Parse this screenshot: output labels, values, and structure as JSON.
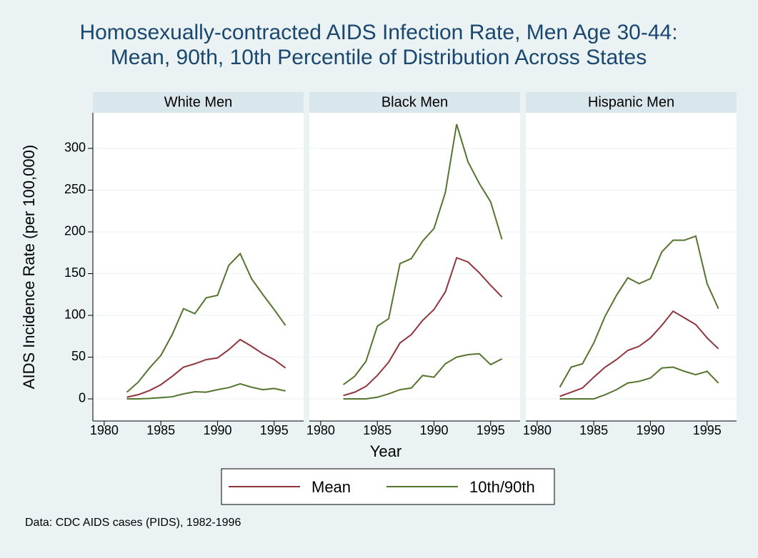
{
  "title": [
    "Homosexually-contracted AIDS Infection Rate, Men Age 30-44:",
    "Mean, 90th, 10th Percentile of Distribution Across States"
  ],
  "y_label": "AIDS Incidence Rate (per 100,000)",
  "x_label": "Year",
  "note": "Data: CDC AIDS cases (PIDS), 1982-1996",
  "chart_data": [
    {
      "type": "line",
      "title": "White Men",
      "x": [
        1982,
        1983,
        1984,
        1985,
        1986,
        1987,
        1988,
        1989,
        1990,
        1991,
        1992,
        1993,
        1994,
        1995,
        1996
      ],
      "series": [
        {
          "name": "Mean",
          "color": "#90353b",
          "values": [
            2,
            5,
            10,
            17,
            27,
            38,
            42,
            47,
            49,
            59,
            71,
            63,
            54,
            47,
            37
          ]
        },
        {
          "name": "10th/90th",
          "color": "#55752f",
          "values": [
            8,
            20,
            37,
            52,
            77,
            108,
            102,
            121,
            124,
            160,
            174,
            144,
            125,
            107,
            88
          ]
        },
        {
          "name": "10th/90th",
          "color": "#55752f",
          "values": [
            0,
            0,
            0.5,
            1.5,
            2.5,
            6,
            8.5,
            8,
            11,
            13.5,
            18,
            14,
            11,
            12.5,
            9.5
          ]
        }
      ],
      "xlim": [
        1979,
        1997.6
      ],
      "xticks": [
        1980,
        1985,
        1990,
        1995
      ],
      "ylim": [
        -26.5,
        342.7
      ],
      "yticks": [
        0,
        50,
        100,
        150,
        200,
        250,
        300
      ],
      "grid": true
    },
    {
      "type": "line",
      "title": "Black Men",
      "x": [
        1982,
        1983,
        1984,
        1985,
        1986,
        1987,
        1988,
        1989,
        1990,
        1991,
        1992,
        1993,
        1994,
        1995,
        1996
      ],
      "series": [
        {
          "name": "Mean",
          "color": "#90353b",
          "values": [
            4,
            8,
            15,
            28,
            44,
            67,
            77,
            94,
            107,
            128,
            169,
            164,
            151,
            136,
            122
          ]
        },
        {
          "name": "10th/90th",
          "color": "#55752f",
          "values": [
            17,
            27,
            45,
            87,
            96,
            162,
            168,
            189,
            204,
            247,
            329,
            284,
            258,
            236,
            191
          ]
        },
        {
          "name": "10th/90th",
          "color": "#55752f",
          "values": [
            0,
            0,
            0,
            2,
            6,
            11,
            13,
            28,
            26,
            42,
            50,
            53,
            54,
            41,
            48
          ]
        }
      ],
      "xlim": [
        1979,
        1997.6
      ],
      "xticks": [
        1980,
        1985,
        1990,
        1995
      ],
      "ylim": [
        -26.5,
        342.7
      ],
      "yticks": [
        0,
        50,
        100,
        150,
        200,
        250,
        300
      ],
      "grid": true
    },
    {
      "type": "line",
      "title": "Hispanic Men",
      "x": [
        1982,
        1983,
        1984,
        1985,
        1986,
        1987,
        1988,
        1989,
        1990,
        1991,
        1992,
        1993,
        1994,
        1995,
        1996
      ],
      "series": [
        {
          "name": "Mean",
          "color": "#90353b",
          "values": [
            3,
            8,
            13,
            26,
            38,
            47,
            58,
            63,
            73,
            88,
            105,
            97,
            89,
            73,
            60
          ]
        },
        {
          "name": "10th/90th",
          "color": "#55752f",
          "values": [
            14,
            38,
            42,
            67,
            99,
            124,
            145,
            138,
            144,
            176,
            190,
            190,
            195,
            138,
            108
          ]
        },
        {
          "name": "10th/90th",
          "color": "#55752f",
          "values": [
            0,
            0,
            0,
            0,
            5,
            11,
            19,
            21,
            25,
            37,
            38,
            33,
            29,
            33,
            19
          ]
        }
      ],
      "xlim": [
        1979,
        1997.6
      ],
      "xticks": [
        1980,
        1985,
        1990,
        1995
      ],
      "ylim": [
        -26.5,
        342.7
      ],
      "yticks": [
        0,
        50,
        100,
        150,
        200,
        250,
        300
      ],
      "grid": true
    }
  ]
}
